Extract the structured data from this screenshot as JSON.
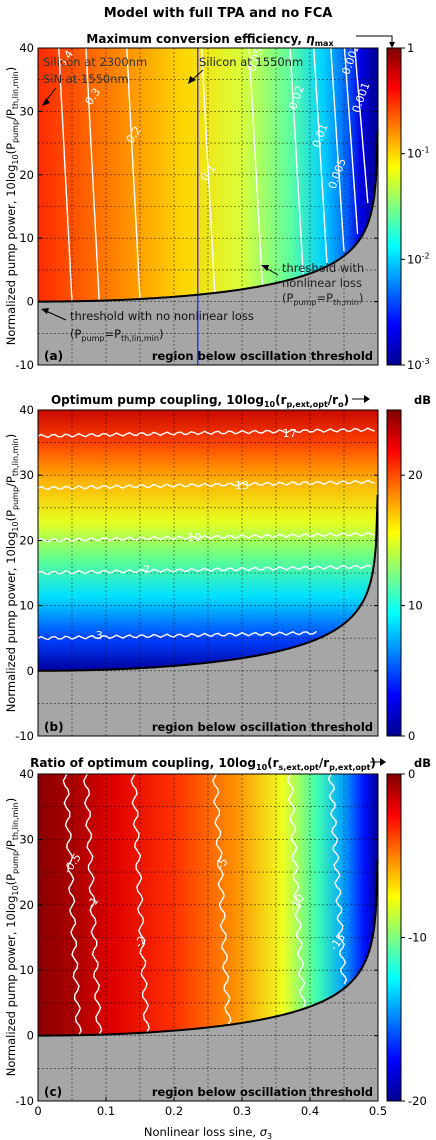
{
  "figure_title": "Model with full TPA and no FCA",
  "colors": {
    "below_threshold": "#a6a6a6",
    "threshold_line": "#000000",
    "silicon_1550_line": "#1a1aff",
    "contour": "#ffffff"
  },
  "chart_data": [
    {
      "type": "heatmap",
      "panel_label": "(a)",
      "title_parts": [
        "Maximum conversion efficiency, ",
        "η",
        "max"
      ],
      "ylabel_parts": [
        "Normalized pump power, 10log",
        "10",
        "(P",
        "pump",
        "/P",
        "th,lin,min",
        ")"
      ],
      "xlabel_parts": [
        "Nonlinear loss sine, ",
        "σ",
        "3"
      ],
      "xlim": [
        0,
        0.5
      ],
      "ylim": [
        -10,
        40
      ],
      "x_ticks": [
        "0",
        "0.1",
        "0.2",
        "0.3",
        "0.4",
        "0.5"
      ],
      "y_ticks": [
        "-10",
        "0",
        "10",
        "20",
        "30",
        "40"
      ],
      "colorbar": {
        "scale": "log",
        "range": [
          0.001,
          1
        ],
        "ticks": [
          {
            "base": "10",
            "exp": "-3",
            "value": 0.001
          },
          {
            "base": "10",
            "exp": "-2",
            "value": 0.01
          },
          {
            "base": "10",
            "exp": "-1",
            "value": 0.1
          },
          {
            "base": "1",
            "exp": "",
            "value": 1
          }
        ]
      },
      "contour_levels": [
        {
          "label": "0.4",
          "sigma": 0.04
        },
        {
          "label": "0.3",
          "sigma": 0.08
        },
        {
          "label": "0.2",
          "sigma": 0.14
        },
        {
          "label": "0.1",
          "sigma": 0.25
        },
        {
          "label": "0.05",
          "sigma": 0.32
        },
        {
          "label": "0.02",
          "sigma": 0.38
        },
        {
          "label": "0.01",
          "sigma": 0.415
        },
        {
          "label": "0.005",
          "sigma": 0.44
        },
        {
          "label": "0.002",
          "sigma": 0.46
        },
        {
          "label": "0.001",
          "sigma": 0.475
        }
      ],
      "annotations": {
        "silicon_2300": "Silicon at 2300nm",
        "sin_1550": "SiN at 1550nm",
        "silicon_1550": "Silicon at 1550nm",
        "silicon_1550_sigma": 0.235,
        "threshold_nonlinear": [
          "threshold with",
          "nonlinear loss"
        ],
        "threshold_nonlinear_eq": [
          "(P",
          "pump",
          "=P",
          "th,min",
          ")"
        ],
        "threshold_no_nonlinear": "threshold with no nonlinear loss",
        "threshold_no_nonlinear_eq": [
          "(P",
          "pump",
          "=P",
          "th,lin,min",
          ")"
        ],
        "below_region": "region below oscillation threshold"
      }
    },
    {
      "type": "heatmap",
      "panel_label": "(b)",
      "title_parts": [
        "Optimum pump coupling, 10log",
        "10",
        "(r",
        "p,ext,opt",
        "/r",
        "o",
        ")"
      ],
      "ylabel_parts": [
        "Normalized pump power, 10log",
        "10",
        "(P",
        "pump",
        "/P",
        "th,lin,min",
        ")"
      ],
      "xlim": [
        0,
        0.5
      ],
      "ylim": [
        -10,
        40
      ],
      "y_ticks": [
        "-10",
        "0",
        "10",
        "20",
        "30",
        "40"
      ],
      "colorbar": {
        "unit": "dB",
        "scale": "linear",
        "range": [
          0,
          25
        ],
        "ticks": [
          "0",
          "10",
          "20"
        ]
      },
      "contour_levels": [
        {
          "label": "3",
          "y": 5
        },
        {
          "label": "7",
          "y": 15
        },
        {
          "label": "10",
          "y": 20
        },
        {
          "label": "13",
          "y": 28
        },
        {
          "label": "17",
          "y": 36
        }
      ],
      "annotations": {
        "below_region": "region below oscillation threshold"
      }
    },
    {
      "type": "heatmap",
      "panel_label": "(c)",
      "title_parts": [
        "Ratio of optimum coupling, 10log",
        "10",
        "(r",
        "s,ext,opt",
        "/r",
        "p,ext,opt",
        ")"
      ],
      "ylabel_parts": [
        "Normalized pump power, 10log",
        "10",
        "(P",
        "pump",
        "/P",
        "th,lin,min",
        ")"
      ],
      "xlim": [
        0,
        0.5
      ],
      "ylim": [
        -10,
        40
      ],
      "y_ticks": [
        "-10",
        "0",
        "10",
        "20",
        "30",
        "40"
      ],
      "colorbar": {
        "unit": "dB",
        "scale": "linear",
        "range": [
          -20,
          0
        ],
        "ticks": [
          "0",
          "-10",
          "-20"
        ]
      },
      "contour_levels": [
        {
          "label": "-0.5",
          "sigma": 0.05
        },
        {
          "label": "-1",
          "sigma": 0.08
        },
        {
          "label": "-2",
          "sigma": 0.15
        },
        {
          "label": "-5",
          "sigma": 0.27
        },
        {
          "label": "-10",
          "sigma": 0.38
        },
        {
          "label": "-15",
          "sigma": 0.44
        }
      ],
      "annotations": {
        "below_region": "region below oscillation threshold"
      }
    }
  ]
}
